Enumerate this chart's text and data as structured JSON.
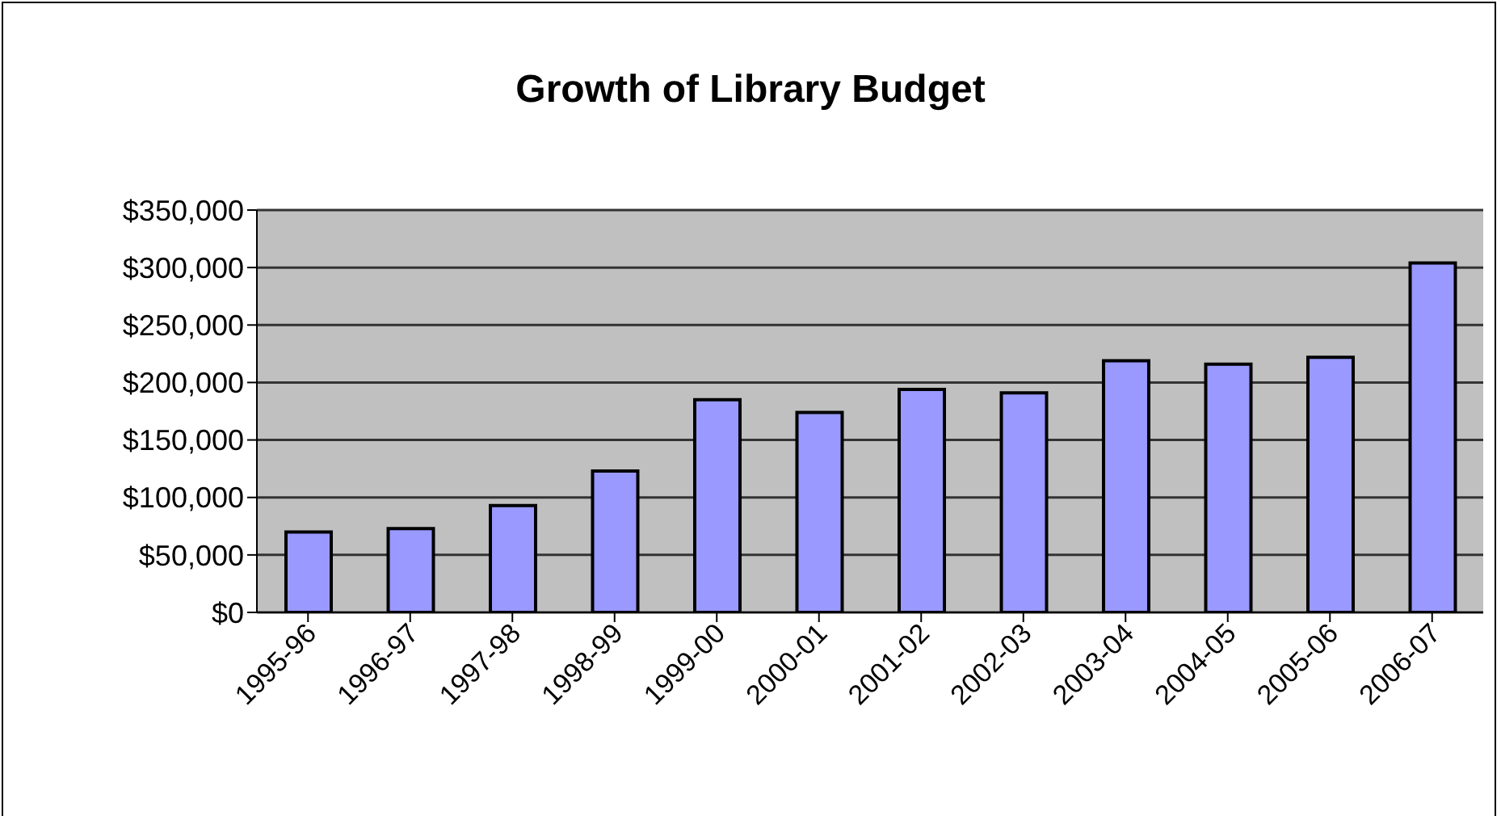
{
  "chart_data": {
    "type": "bar",
    "title": "Growth of Library Budget",
    "categories": [
      "1995-96",
      "1996-97",
      "1997-98",
      "1998-99",
      "1999-00",
      "2000-01",
      "2001-02",
      "2002-03",
      "2003-04",
      "2004-05",
      "2005-06",
      "2006-07"
    ],
    "values": [
      70000,
      73000,
      93000,
      123000,
      185000,
      174000,
      194000,
      191000,
      219000,
      216000,
      222000,
      304000
    ],
    "color": "#9999ff",
    "ylim": [
      0,
      350000
    ],
    "yticks": [
      {
        "value": 0,
        "label": "$0"
      },
      {
        "value": 50000,
        "label": "$50,000"
      },
      {
        "value": 100000,
        "label": "$100,000"
      },
      {
        "value": 150000,
        "label": "$150,000"
      },
      {
        "value": 200000,
        "label": "$200,000"
      },
      {
        "value": 250000,
        "label": "$250,000"
      },
      {
        "value": 300000,
        "label": "$300,000"
      },
      {
        "value": 350000,
        "label": "$350,000"
      }
    ],
    "grid": "y",
    "legend": false
  }
}
